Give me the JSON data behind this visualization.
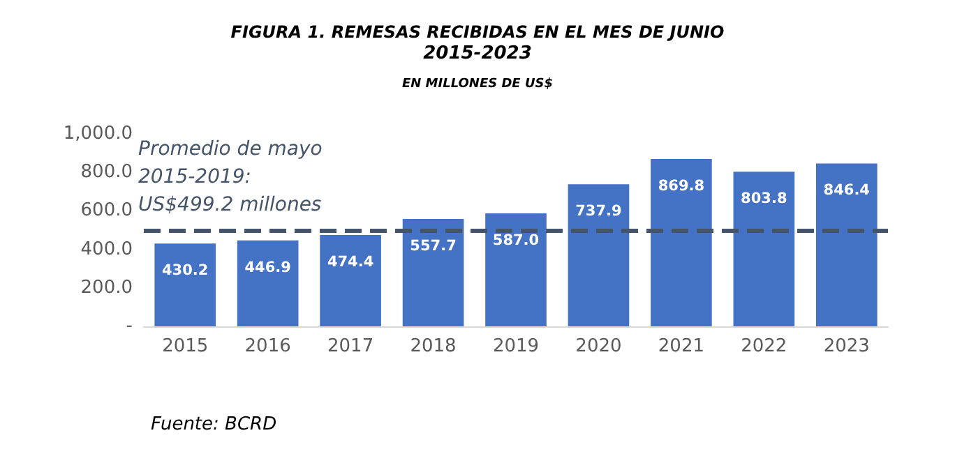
{
  "chart_data": {
    "type": "bar",
    "title": "FIGURA 1. REMESAS RECIBIDAS EN EL MES DE JUNIO",
    "subtitle": "2015-2023",
    "annotations": [
      "EN MILLONES DE US$",
      "Fuente: BCRD"
    ],
    "categories": [
      "2015",
      "2016",
      "2017",
      "2018",
      "2019",
      "2020",
      "2021",
      "2022",
      "2023"
    ],
    "values": [
      430.2,
      446.9,
      474.4,
      557.7,
      587.0,
      737.9,
      869.8,
      803.8,
      846.4
    ],
    "value_labels": [
      "430.2",
      "446.9",
      "474.4",
      "557.7",
      "587.0",
      "737.9",
      "869.8",
      "803.8",
      "846.4"
    ],
    "color": "#4472c4",
    "ylim": [
      0,
      1000
    ],
    "yticks": [
      {
        "value": 0,
        "label": "-"
      },
      {
        "value": 200,
        "label": "200.0"
      },
      {
        "value": 400,
        "label": "400.0"
      },
      {
        "value": 600,
        "label": "600.0"
      },
      {
        "value": 800,
        "label": "800.0"
      },
      {
        "value": 1000,
        "label": "1,000.0"
      }
    ],
    "ref_lines": [
      {
        "axis": "y",
        "value": 499.2,
        "label": "Promedio de mayo\n2015-2019:\nUS$499.2 millones",
        "color": "#44546a",
        "line_style": "dashed"
      }
    ],
    "grid": false
  }
}
